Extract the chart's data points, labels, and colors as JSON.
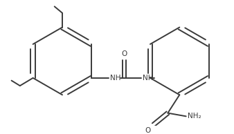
{
  "background_color": "#ffffff",
  "line_color": "#3a3a3a",
  "line_width": 1.4,
  "text_color": "#3a3a3a",
  "font_size": 7.5,
  "figsize": [
    3.38,
    1.94
  ],
  "dpi": 100,
  "xlim": [
    0,
    338
  ],
  "ylim": [
    0,
    194
  ]
}
